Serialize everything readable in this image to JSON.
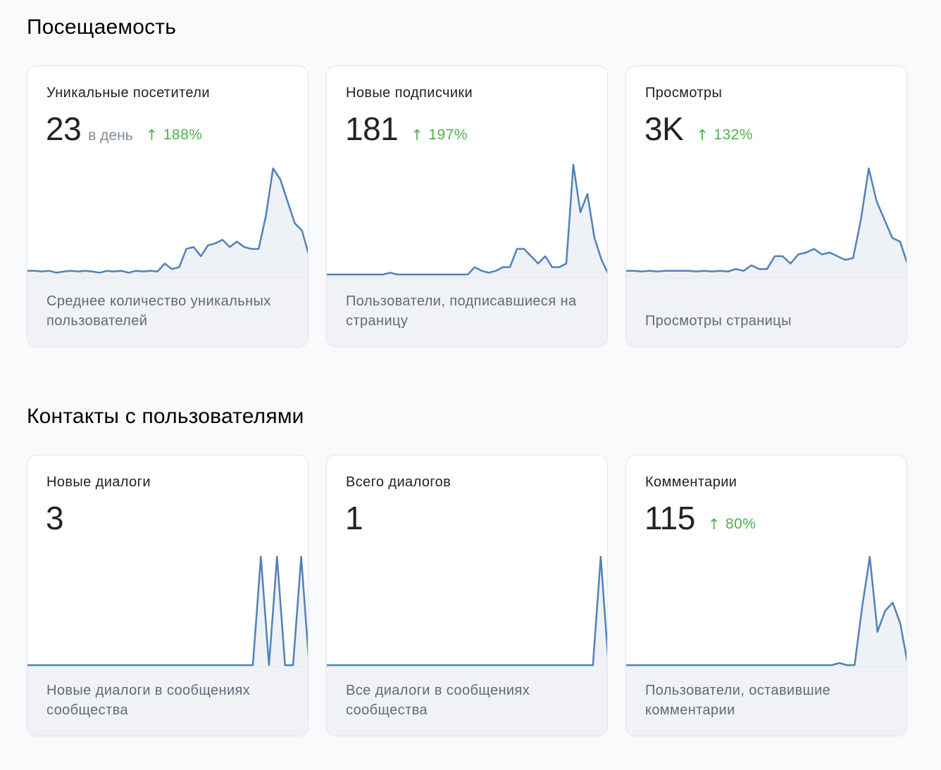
{
  "sections": [
    {
      "title": "Посещаемость",
      "cards": [
        {
          "title": "Уникальные посетители",
          "value": "23",
          "unit": "в день",
          "delta": "188%",
          "description": "Среднее количество уникальных пользователей",
          "series": [
            1,
            1,
            0.8,
            1,
            0.5,
            0.8,
            1,
            0.8,
            1,
            0.8,
            0.5,
            1,
            0.8,
            1,
            0.5,
            1,
            0.8,
            1,
            0.8,
            3,
            1.5,
            2,
            7,
            7.5,
            5,
            8,
            8.5,
            9.5,
            7.5,
            9,
            7.5,
            7,
            7,
            16,
            29,
            26,
            20,
            14,
            12,
            5
          ],
          "ymax": 30
        },
        {
          "title": "Новые подписчики",
          "value": "181",
          "unit": "",
          "delta": "197%",
          "description": "Пользователи, подписавшиеся на страницу",
          "series": [
            0,
            0,
            0,
            0,
            0,
            0,
            0,
            0,
            0,
            0.5,
            0,
            0,
            0,
            0,
            0,
            0,
            0,
            0,
            0,
            0,
            0,
            2,
            1,
            0.5,
            1,
            2,
            2,
            7,
            7,
            5,
            3,
            5,
            2,
            2,
            3,
            30,
            17,
            22,
            10,
            4,
            0
          ],
          "ymax": 30
        },
        {
          "title": "Просмотры",
          "value": "3K",
          "unit": "",
          "delta": "132%",
          "description": "Просмотры страницы",
          "series": [
            1,
            1,
            0.8,
            1,
            0.8,
            1,
            1,
            1,
            1,
            0.8,
            1,
            0.8,
            1,
            0.8,
            1.5,
            1,
            2.5,
            1.5,
            1.5,
            5,
            5,
            3,
            5.5,
            6,
            7,
            5.5,
            6,
            5,
            4,
            4.5,
            15,
            29,
            20,
            15,
            10,
            9,
            2.5
          ],
          "ymax": 30
        }
      ]
    },
    {
      "title": "Контакты с пользователями",
      "cards": [
        {
          "title": "Новые диалоги",
          "value": "3",
          "unit": "",
          "delta": "",
          "description": "Новые диалоги в сообщениях сообщества",
          "series": [
            0,
            0,
            0,
            0,
            0,
            0,
            0,
            0,
            0,
            0,
            0,
            0,
            0,
            0,
            0,
            0,
            0,
            0,
            0,
            0,
            0,
            0,
            0,
            0,
            0,
            0,
            0,
            0,
            0,
            1,
            0,
            1,
            0,
            0,
            1,
            0
          ],
          "ymax": 1
        },
        {
          "title": "Всего диалогов",
          "value": "1",
          "unit": "",
          "delta": "",
          "description": "Все диалоги в сообщениях сообщества",
          "series": [
            0,
            0,
            0,
            0,
            0,
            0,
            0,
            0,
            0,
            0,
            0,
            0,
            0,
            0,
            0,
            0,
            0,
            0,
            0,
            0,
            0,
            0,
            0,
            0,
            0,
            0,
            0,
            0,
            0,
            0,
            0,
            0,
            0,
            0,
            0,
            1,
            0
          ],
          "ymax": 1
        },
        {
          "title": "Комментарии",
          "value": "115",
          "unit": "",
          "delta": "80%",
          "description": "Пользователи, оставившие комментарии",
          "series": [
            0,
            0,
            0,
            0,
            0,
            0,
            0,
            0,
            0,
            0,
            0,
            0,
            0,
            0,
            0,
            0,
            0,
            0,
            0,
            0,
            0,
            0,
            0,
            0,
            0,
            0,
            0,
            0,
            0.5,
            0,
            0,
            14,
            26,
            8,
            13,
            15,
            10,
            0
          ],
          "ymax": 26
        }
      ]
    }
  ],
  "colors": {
    "line": "#5181b8",
    "fill": "#eef1f6",
    "delta": "#4bb34b"
  },
  "icons": {
    "delta": "arrow-up-icon"
  }
}
